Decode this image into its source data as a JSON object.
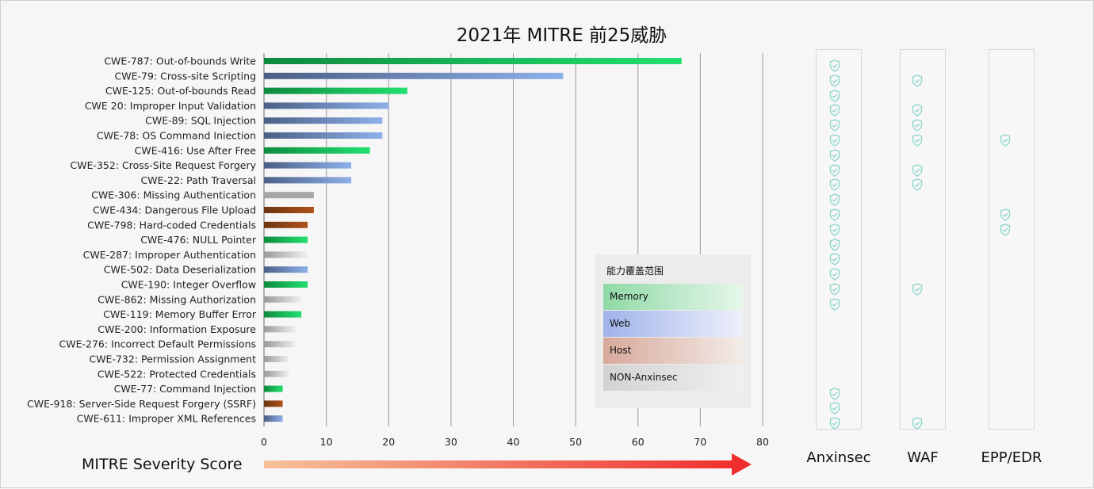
{
  "title": "2021年 MITRE 前25威胁",
  "colors": {
    "Memory": [
      "#0e8a3e",
      "#22e070"
    ],
    "Web": [
      "#4a5f85",
      "#8eb0ea"
    ],
    "Host": [
      "#6b3410",
      "#b0531c"
    ],
    "NON-Anxinsec": [
      "#9a9a9a",
      "#efefef"
    ],
    "Other": [
      "#a6a6a6",
      "#a6a6a6"
    ],
    "arrow": [
      "#f6c29a",
      "#ef2a2a"
    ],
    "check": "#8fd6cc"
  },
  "chart_data": {
    "type": "bar",
    "orientation": "horizontal",
    "categories": [
      "CWE-787: Out-of-bounds Write",
      "CWE-79: Cross-site Scripting",
      "CWE-125: Out-of-bounds Read",
      "CWE 20: Improper Input Validation",
      "CWE-89: SQL Injection",
      "CWE-78: OS Command Iniection",
      "CWE-416: Use After Free",
      "CWE-352: Cross-Site Request Forgery",
      "CWE-22: Path Traversal",
      "CWE-306: Missing Authentication",
      "CWE-434: Dangerous File Upload",
      "CWE-798: Hard-coded Credentials",
      "CWE-476: NULL Pointer",
      "CWE-287: Improper Authentication",
      "CWE-502: Data Deserialization",
      "CWE-190: Integer Overflow",
      "CWE-862: Missing Authorization",
      "CWE-119: Memory Buffer Error",
      "CWE-200: Information Exposure",
      "CWE-276: Incorrect Default Permissions",
      "CWE-732: Permission Assignment",
      "CWE-522: Protected Credentials",
      "CWE-77: Command Injection",
      "CWE-918: Server-Side Request Forgery (SSRF)",
      "CWE-611: Improper XML References"
    ],
    "values": [
      67,
      48,
      23,
      20,
      19,
      19,
      17,
      14,
      14,
      8,
      8,
      7,
      7,
      7,
      7,
      7,
      6,
      6,
      5,
      5,
      4,
      4,
      3,
      3,
      3
    ],
    "groups": [
      "Memory",
      "Web",
      "Memory",
      "Web",
      "Web",
      "Web",
      "Memory",
      "Web",
      "Web",
      "Other",
      "Host",
      "Host",
      "Memory",
      "NON-Anxinsec",
      "Web",
      "Memory",
      "NON-Anxinsec",
      "Memory",
      "NON-Anxinsec",
      "NON-Anxinsec",
      "NON-Anxinsec",
      "NON-Anxinsec",
      "Memory",
      "Host",
      "Web"
    ],
    "xlim": [
      0,
      80
    ],
    "xticks": [
      "0",
      "10",
      "20",
      "30",
      "40",
      "50",
      "60",
      "70",
      "80"
    ],
    "xlabel": "MITRE Severity Score",
    "grid": true,
    "legend": {
      "title": "能力覆盖范围",
      "items": [
        "Memory",
        "Web",
        "Host",
        "NON-Anxinsec"
      ],
      "placement": "inside lower-right"
    },
    "coverage": {
      "columns": [
        "Anxinsec",
        "WAF",
        "EPP/EDR"
      ],
      "Anxinsec": [
        0,
        1,
        2,
        3,
        4,
        5,
        6,
        7,
        8,
        9,
        10,
        11,
        12,
        13,
        14,
        15,
        16,
        22,
        23,
        24
      ],
      "WAF": [
        1,
        3,
        4,
        5,
        7,
        8,
        15,
        24
      ],
      "EPP/EDR": [
        5,
        10,
        11
      ]
    }
  }
}
